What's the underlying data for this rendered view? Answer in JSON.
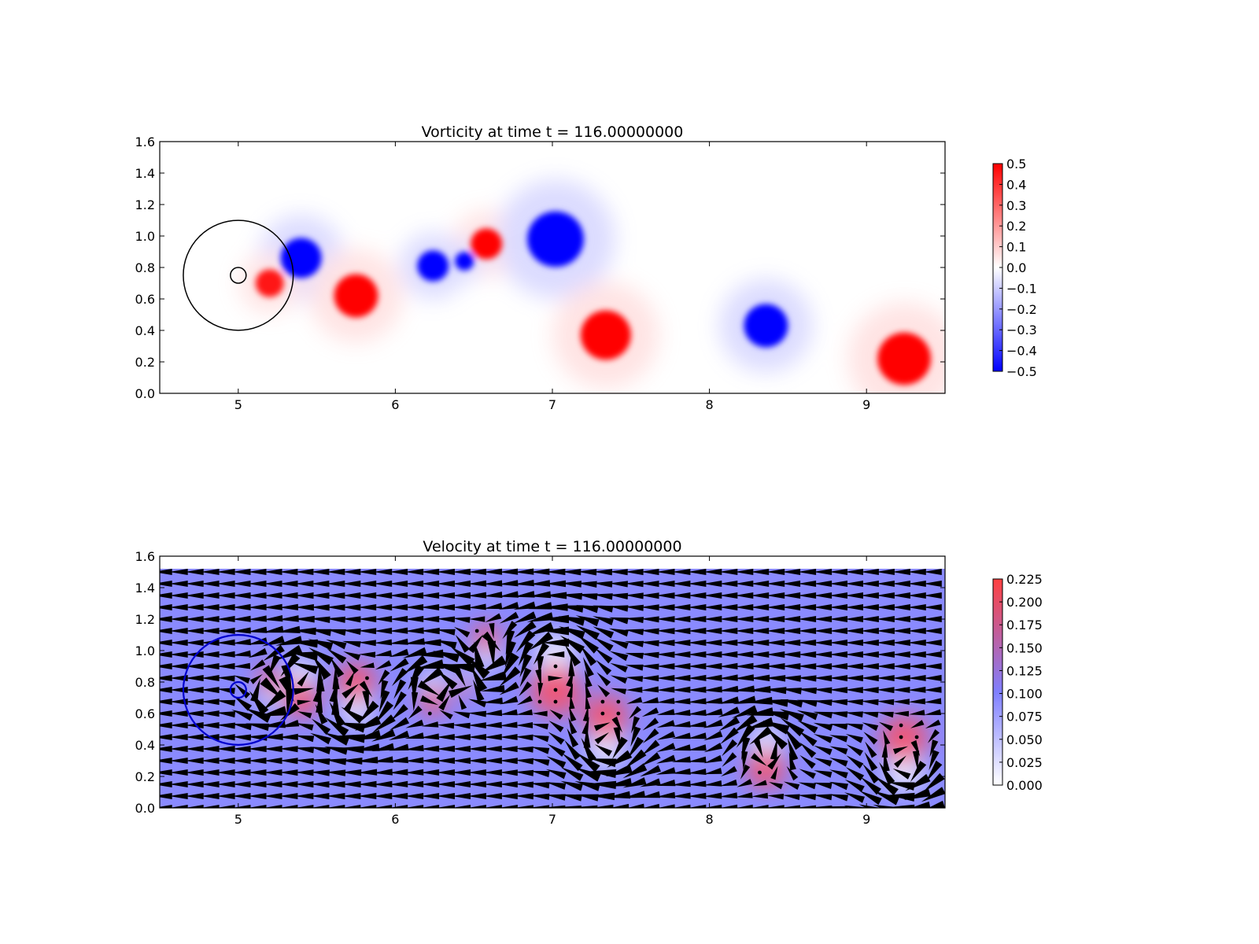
{
  "chart_data": [
    {
      "type": "heatmap",
      "title": "Vorticity at time t =   116.00000000",
      "xlabel": "",
      "ylabel": "",
      "xlim": [
        4.5,
        9.5
      ],
      "ylim": [
        0.0,
        1.6
      ],
      "xticks": [
        "5",
        "6",
        "7",
        "8",
        "9"
      ],
      "yticks": [
        "0.0",
        "0.2",
        "0.4",
        "0.6",
        "0.8",
        "1.0",
        "1.2",
        "1.4",
        "1.6"
      ],
      "colorbar": {
        "min": -0.5,
        "max": 0.5,
        "ticks": [
          "0.5",
          "0.4",
          "0.3",
          "0.2",
          "0.1",
          "0.0",
          "−0.1",
          "−0.2",
          "−0.3",
          "−0.4",
          "−0.5"
        ],
        "colors": {
          "low": "#0000ff",
          "mid": "#ffffff",
          "high": "#ff0000"
        }
      },
      "vortices": [
        {
          "x": 5.4,
          "y": 0.86,
          "r": 0.13,
          "w": -0.5
        },
        {
          "x": 5.75,
          "y": 0.62,
          "r": 0.14,
          "w": 0.5
        },
        {
          "x": 6.24,
          "y": 0.81,
          "r": 0.1,
          "w": -0.5
        },
        {
          "x": 6.58,
          "y": 0.95,
          "r": 0.1,
          "w": 0.5
        },
        {
          "x": 6.44,
          "y": 0.84,
          "r": 0.06,
          "w": -0.5
        },
        {
          "x": 7.02,
          "y": 0.98,
          "r": 0.18,
          "w": -0.5
        },
        {
          "x": 7.34,
          "y": 0.37,
          "r": 0.16,
          "w": 0.5
        },
        {
          "x": 8.36,
          "y": 0.43,
          "r": 0.14,
          "w": -0.5
        },
        {
          "x": 9.24,
          "y": 0.22,
          "r": 0.17,
          "w": 0.5
        },
        {
          "x": 5.2,
          "y": 0.7,
          "r": 0.09,
          "w": 0.45
        }
      ],
      "circles": [
        {
          "x": 5.0,
          "y": 0.75,
          "r": 0.35,
          "color": "#000000"
        },
        {
          "x": 5.0,
          "y": 0.75,
          "r": 0.05,
          "color": "#000000"
        }
      ]
    },
    {
      "type": "heatmap",
      "title": "Velocity at time t =   116.00000000",
      "xlabel": "",
      "ylabel": "",
      "xlim": [
        4.5,
        9.5
      ],
      "ylim": [
        0.0,
        1.6
      ],
      "field_top": 1.52,
      "xticks": [
        "5",
        "6",
        "7",
        "8",
        "9"
      ],
      "yticks": [
        "0.0",
        "0.2",
        "0.4",
        "0.6",
        "0.8",
        "1.0",
        "1.2",
        "1.4",
        "1.6"
      ],
      "colorbar": {
        "min": 0.0,
        "max": 0.225,
        "ticks": [
          "0.225",
          "0.200",
          "0.175",
          "0.150",
          "0.125",
          "0.100",
          "0.075",
          "0.050",
          "0.025",
          "0.000"
        ],
        "colors": {
          "low": "#ffffff",
          "mid": "#7f7fff",
          "high": "#ff4040"
        }
      },
      "background_speed": 0.1,
      "quiver": true,
      "circles": [
        {
          "x": 5.0,
          "y": 0.75,
          "r": 0.35,
          "color": "#0000cc"
        },
        {
          "x": 5.0,
          "y": 0.75,
          "r": 0.05,
          "color": "#0000cc"
        }
      ]
    }
  ]
}
